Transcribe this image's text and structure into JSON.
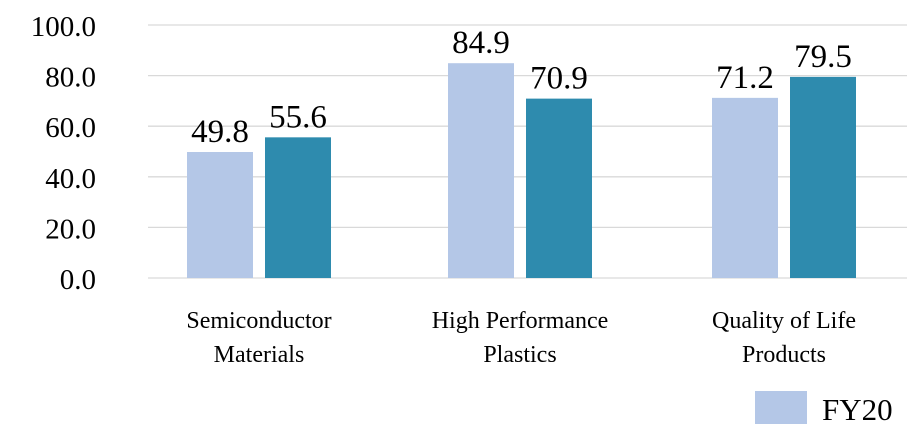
{
  "chart_data": {
    "type": "bar",
    "categories": [
      [
        "Semiconductor",
        "Materials"
      ],
      [
        "High Performance",
        "Plastics"
      ],
      [
        "Quality of Life",
        "Products"
      ]
    ],
    "series": [
      {
        "name": "FY20",
        "values": [
          49.8,
          84.9,
          71.2
        ],
        "color": "#b4c7e7"
      },
      {
        "values": [
          55.6,
          70.9,
          79.5
        ],
        "color": "#2e8bae"
      }
    ],
    "ylim": [
      0,
      100
    ],
    "yticks": [
      "0.0",
      "20.0",
      "40.0",
      "60.0",
      "80.0",
      "100.0"
    ],
    "data_labels": [
      [
        "49.8",
        "84.9",
        "71.2"
      ],
      [
        "55.6",
        "70.9",
        "79.5"
      ]
    ],
    "grid": true,
    "legend_position": "bottom-right",
    "gridline_color": "#d9d9d9"
  }
}
